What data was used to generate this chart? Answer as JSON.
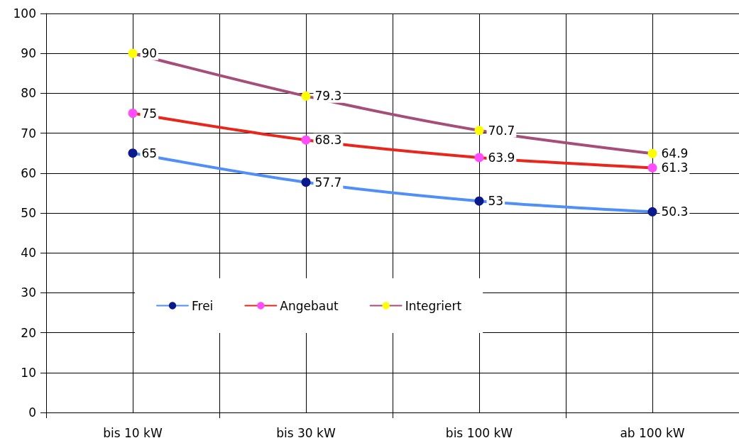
{
  "chart_data": {
    "type": "line",
    "categories": [
      "bis 10 kW",
      "bis 30 kW",
      "bis 100 kW",
      "ab 100 kW"
    ],
    "series": [
      {
        "name": "Frei",
        "color": "#4f8ff7",
        "colors": [
          "#0a1a8c",
          "#0a1a8c",
          "#0a1a8c",
          "#0a1a8c"
        ],
        "values": [
          65,
          57.7,
          53,
          50.3
        ]
      },
      {
        "name": "Angebaut",
        "color": "#e8261b",
        "colors": [
          "#ff4dff",
          "#ff4dff",
          "#ff4dff",
          "#ff4dff"
        ],
        "values": [
          75,
          68.3,
          63.9,
          61.3
        ]
      },
      {
        "name": "Integriert",
        "color": "#a64d7a",
        "colors": [
          "#ffff00",
          "#ffff00",
          "#ffff00",
          "#ffff00"
        ],
        "values": [
          90,
          79.3,
          70.7,
          64.9
        ]
      }
    ],
    "ylim": [
      0,
      100
    ],
    "yticks": [
      0,
      10,
      20,
      30,
      40,
      50,
      60,
      70,
      80,
      90,
      100
    ],
    "grid": true,
    "legend": "bottom left",
    "marker": "circle",
    "line_style": "solid",
    "data_labels": true
  }
}
